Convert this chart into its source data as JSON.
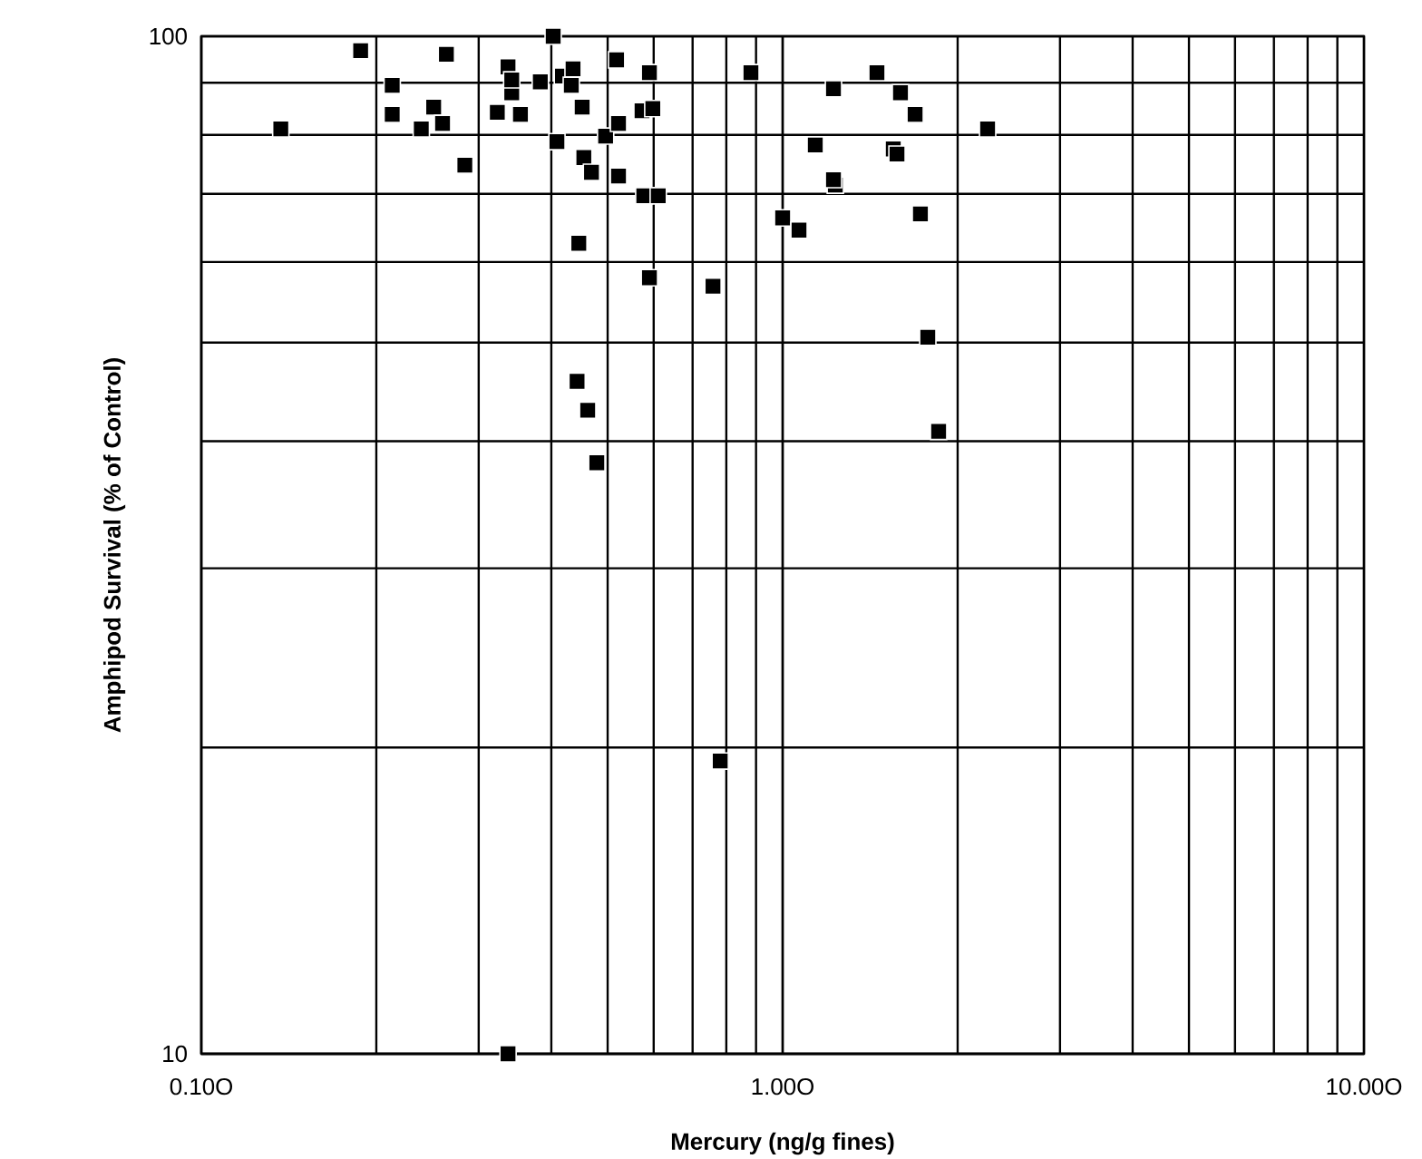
{
  "chart_data": {
    "type": "scatter",
    "xlabel": "Mercury (ng/g fines)",
    "ylabel": "Amphipod Survival (% of Control)",
    "log": "xy",
    "grid": true,
    "marker": "square",
    "xlim": [
      0.1,
      10
    ],
    "ylim": [
      10,
      100
    ],
    "xticks": [
      {
        "value": 0.1,
        "label": "0.10O"
      },
      {
        "value": 1,
        "label": "1.00O"
      },
      {
        "value": 10,
        "label": "10.00O"
      }
    ],
    "yticks": [
      10,
      100
    ],
    "series": [
      {
        "color": "#000000",
        "x": [
          0.137,
          0.188,
          0.213,
          0.213,
          0.239,
          0.251,
          0.26,
          0.264,
          0.284,
          0.323,
          0.337,
          0.342,
          0.342,
          0.354,
          0.383,
          0.403,
          0.409,
          0.418,
          0.433,
          0.436,
          0.446,
          0.443,
          0.452,
          0.455,
          0.462,
          0.469,
          0.479,
          0.496,
          0.518,
          0.522,
          0.522,
          0.573,
          0.577,
          0.59,
          0.598,
          0.59,
          0.611,
          0.759,
          0.781,
          0.882,
          1.0,
          1.067,
          1.138,
          1.223,
          1.232,
          1.223,
          1.453,
          1.55,
          1.573,
          1.595,
          1.69,
          1.726,
          1.777,
          1.855,
          2.252,
          0.337
        ],
        "values": [
          81.1,
          96.8,
          89.5,
          83.8,
          81.1,
          85.2,
          82.1,
          96.0,
          74.7,
          84.2,
          93.3,
          88.0,
          90.6,
          83.8,
          90.2,
          100,
          78.8,
          91.4,
          89.5,
          92.9,
          62.6,
          45.8,
          85.2,
          76.0,
          42.9,
          73.5,
          38.1,
          79.8,
          94.8,
          82.1,
          72.9,
          84.5,
          69.7,
          92.1,
          84.9,
          57.9,
          69.7,
          56.8,
          19.4,
          92.1,
          66.3,
          64.5,
          78.2,
          88.8,
          71.4,
          72.3,
          92.1,
          77.5,
          76.6,
          88.0,
          83.8,
          66.9,
          50.6,
          40.9,
          81.1,
          10
        ]
      }
    ]
  }
}
